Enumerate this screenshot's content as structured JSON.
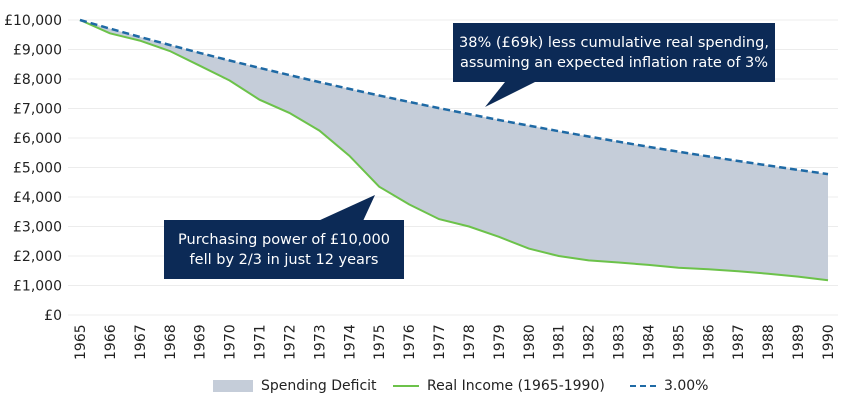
{
  "chart_data": {
    "type": "area",
    "title": "",
    "xlabel": "",
    "ylabel": "",
    "x": [
      1965,
      1966,
      1967,
      1968,
      1969,
      1970,
      1971,
      1972,
      1973,
      1974,
      1975,
      1976,
      1977,
      1978,
      1979,
      1980,
      1981,
      1982,
      1983,
      1984,
      1985,
      1986,
      1987,
      1988,
      1989,
      1990
    ],
    "ylim": [
      0,
      10000
    ],
    "y_ticks": [
      "£0",
      "£1,000",
      "£2,000",
      "£3,000",
      "£4,000",
      "£5,000",
      "£6,000",
      "£7,000",
      "£8,000",
      "£9,000",
      "£10,000"
    ],
    "grid": true,
    "legend_position": "bottom",
    "series": [
      {
        "name": "Spending Deficit",
        "kind": "area-between",
        "color": "#c5cdd9"
      },
      {
        "name": "Real Income (1965-1990)",
        "kind": "line",
        "color": "#6cc24a",
        "values": [
          10000,
          9550,
          9300,
          8950,
          8450,
          7950,
          7300,
          6850,
          6250,
          5400,
          4350,
          3750,
          3250,
          3000,
          2650,
          2250,
          2000,
          1850,
          1780,
          1700,
          1600,
          1550,
          1480,
          1400,
          1300,
          1180
        ]
      },
      {
        "name": "3.00%",
        "kind": "dashed-line",
        "color": "#1f6aa5",
        "values": [
          10000,
          9709,
          9426,
          9151,
          8885,
          8626,
          8375,
          8131,
          7894,
          7664,
          7441,
          7224,
          7014,
          6810,
          6611,
          6419,
          6232,
          6050,
          5874,
          5703,
          5537,
          5375,
          5219,
          5067,
          4919,
          4776
        ]
      }
    ],
    "annotations": [
      "38% (£69k) less cumulative real spending,\nassuming an expected inflation rate of 3%",
      "Purchasing power of £10,000\nfell by 2/3 in just 12 years"
    ]
  },
  "callouts": {
    "top_line1": "38% (£69k) less cumulative real spending,",
    "top_line2": "assuming an expected inflation rate of 3%",
    "bottom_line1": "Purchasing power of £10,000",
    "bottom_line2": "fell by 2/3 in just 12 years"
  },
  "legend": {
    "deficit": "Spending Deficit",
    "income": "Real Income (1965-1990)",
    "rate": "3.00%"
  },
  "colors": {
    "callout_bg": "#0c2a56",
    "grid": "#ececec"
  }
}
